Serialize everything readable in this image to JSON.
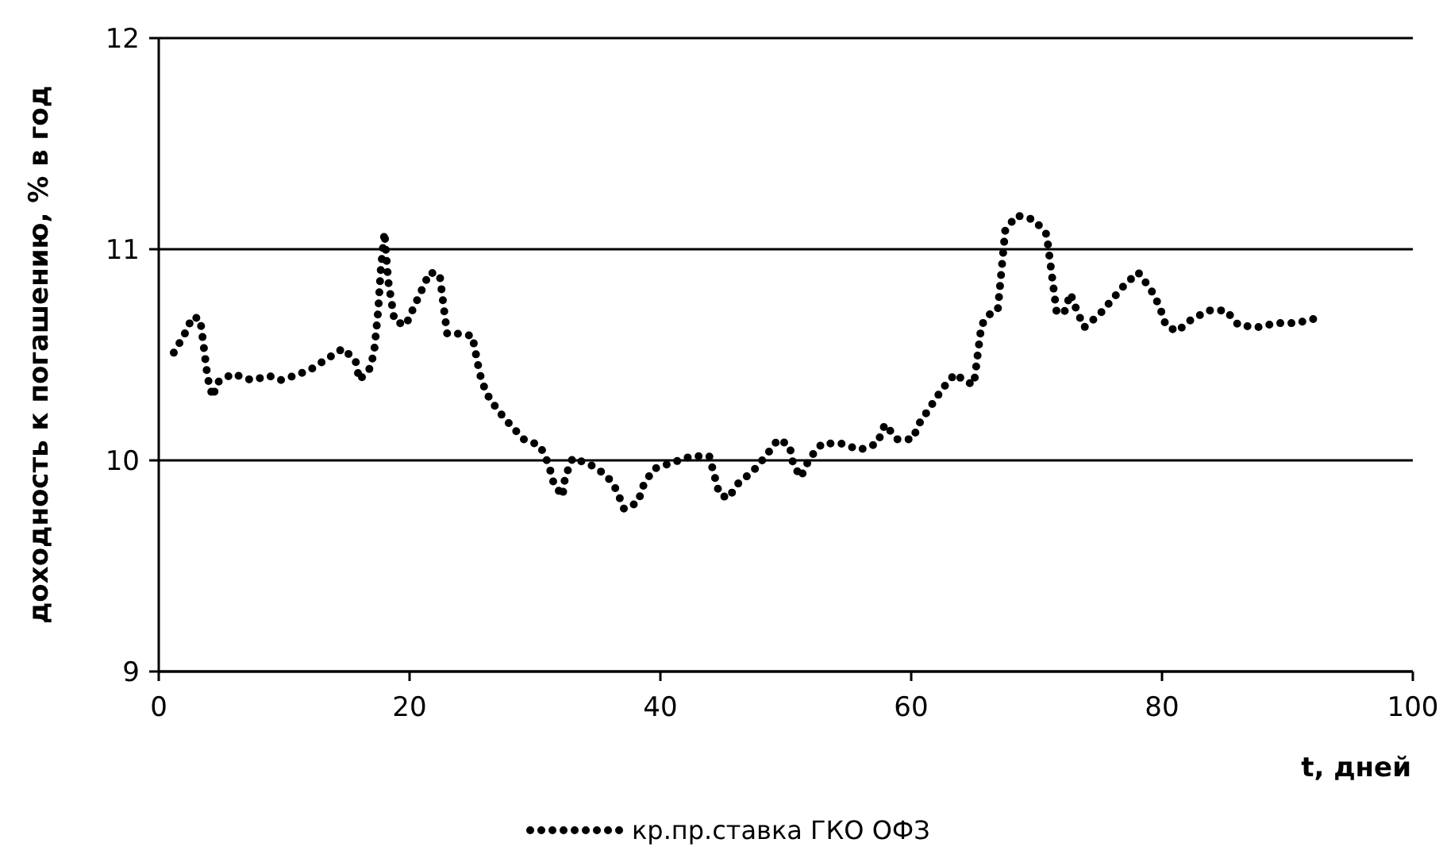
{
  "chart_data": {
    "type": "line",
    "xlabel": "t, дней",
    "ylabel": "доходность к погашению, % в год",
    "xlim": [
      0,
      100
    ],
    "xticks": [
      0,
      20,
      40,
      60,
      80,
      100
    ],
    "ylim": [
      9,
      12
    ],
    "yticks": [
      9,
      10,
      11,
      12
    ],
    "grid": "y",
    "legend": "bottom",
    "line_style": "dotted",
    "series": [
      {
        "name": "кр.пр.ставка ГКО ОФЗ",
        "color": "#000000",
        "x": [
          1.2,
          2.0,
          2.7,
          3.3,
          3.5,
          3.9,
          4.3,
          4.7,
          5.9,
          7.4,
          8.8,
          9.7,
          10.8,
          12.1,
          13.4,
          14.7,
          15.7,
          16.0,
          16.9,
          17.2,
          17.5,
          17.7,
          18.0,
          18.3,
          18.8,
          19.7,
          20.3,
          21.0,
          21.6,
          22.4,
          22.8,
          23.0,
          23.8,
          25.0,
          25.6,
          26.1,
          27.0,
          28.0,
          29.1,
          30.4,
          31.1,
          31.5,
          32.2,
          32.4,
          33.0,
          34.4,
          35.7,
          36.5,
          37.1,
          38.2,
          38.7,
          39.5,
          41.0,
          42.5,
          43.9,
          44.3,
          44.7,
          45.4,
          46.2,
          47.4,
          48.4,
          49.4,
          50.3,
          50.6,
          51.2,
          51.9,
          52.9,
          54.4,
          55.9,
          57.3,
          57.9,
          58.9,
          60.1,
          60.7,
          61.6,
          62.5,
          63.5,
          64.4,
          65.0,
          65.6,
          66.2,
          66.9,
          67.5,
          68.4,
          69.8,
          70.8,
          71.6,
          72.2,
          72.7,
          73.2,
          73.8,
          75.0,
          76.0,
          77.0,
          78.1,
          79.1,
          79.8,
          80.3,
          81.2,
          82.4,
          83.8,
          85.1,
          86.1,
          87.6,
          89.1,
          90.7,
          92.1,
          92.6
        ],
        "values": [
          10.51,
          10.59,
          10.68,
          10.67,
          10.58,
          10.39,
          10.3,
          10.37,
          10.41,
          10.38,
          10.4,
          10.38,
          10.4,
          10.43,
          10.48,
          10.53,
          10.47,
          10.38,
          10.44,
          10.53,
          10.71,
          10.9,
          11.08,
          10.85,
          10.66,
          10.64,
          10.72,
          10.81,
          10.89,
          10.88,
          10.69,
          10.6,
          10.6,
          10.59,
          10.41,
          10.32,
          10.24,
          10.17,
          10.1,
          10.07,
          9.98,
          9.89,
          9.83,
          9.92,
          10.01,
          9.98,
          9.93,
          9.86,
          9.77,
          9.8,
          9.89,
          9.96,
          9.99,
          10.02,
          10.02,
          9.93,
          9.84,
          9.82,
          9.89,
          9.95,
          10.02,
          10.1,
          10.07,
          9.98,
          9.92,
          10.01,
          10.08,
          10.08,
          10.05,
          10.08,
          10.17,
          10.1,
          10.1,
          10.18,
          10.26,
          10.34,
          10.41,
          10.37,
          10.36,
          10.64,
          10.69,
          10.71,
          11.09,
          11.16,
          11.14,
          11.07,
          10.7,
          10.7,
          10.79,
          10.71,
          10.63,
          10.69,
          10.76,
          10.83,
          10.89,
          10.81,
          10.73,
          10.64,
          10.61,
          10.67,
          10.71,
          10.71,
          10.64,
          10.63,
          10.65,
          10.65,
          10.67,
          10.68
        ]
      }
    ]
  }
}
